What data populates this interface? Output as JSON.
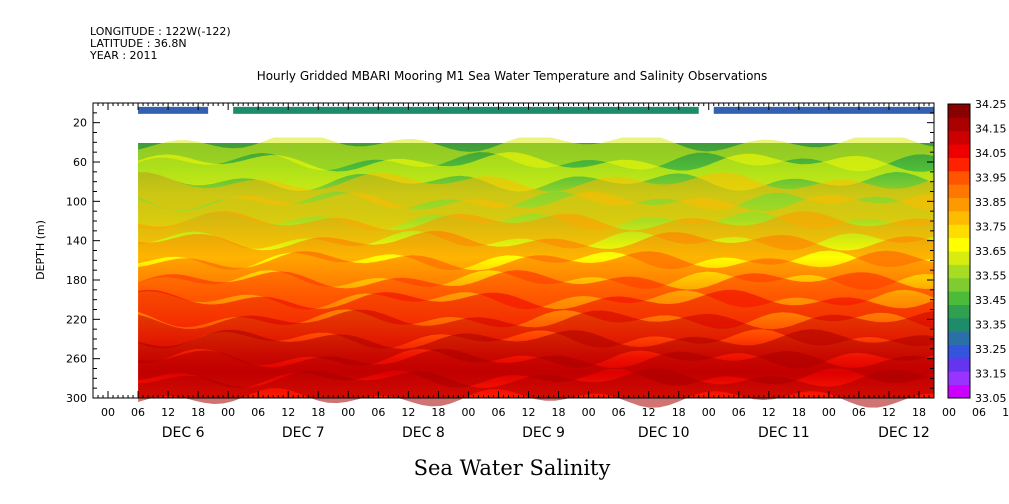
{
  "meta": {
    "longitude": "LONGITUDE : 122W(-122)",
    "latitude": "LATITUDE : 36.8N",
    "year": "YEAR : 2011"
  },
  "title": "Hourly Gridded MBARI Mooring M1 Sea Water Temperature and Salinity Observations",
  "variable_label": "Sea Water Salinity",
  "chart_data": {
    "type": "heatmap",
    "title": "Hourly Gridded MBARI Mooring M1 Sea Water Temperature and Salinity Observations",
    "xlabel": "",
    "ylabel": "DEPTH (m)",
    "x_range": [
      "2011-12-05 21:00",
      "2011-12-12 21:00"
    ],
    "x_tick_hours": [
      "00",
      "06",
      "12",
      "18",
      "00",
      "06",
      "12",
      "18",
      "00",
      "06",
      "12",
      "18",
      "00",
      "06",
      "12",
      "18",
      "00",
      "06",
      "12",
      "18",
      "00",
      "06",
      "12",
      "18",
      "00",
      "06",
      "12",
      "18",
      "00",
      "06",
      "12",
      "18"
    ],
    "x_day_labels": [
      "DEC  6",
      "DEC  7",
      "DEC  8",
      "DEC  9",
      "DEC 10",
      "DEC 11",
      "DEC 12"
    ],
    "ylim": [
      300,
      0
    ],
    "y_ticks": [
      20,
      60,
      100,
      140,
      180,
      220,
      260,
      300
    ],
    "colorbar": {
      "levels": [
        33.05,
        33.15,
        33.25,
        33.35,
        33.45,
        33.55,
        33.65,
        33.75,
        33.85,
        33.95,
        34.05,
        34.15,
        34.25
      ],
      "colors": [
        "#cc00ff",
        "#9933ff",
        "#6633ee",
        "#3355dd",
        "#2a6fa8",
        "#1e8c6a",
        "#2fa050",
        "#4dbb3a",
        "#7fcc30",
        "#a8dc22",
        "#d8ec10",
        "#ffff00",
        "#ffdd00",
        "#ffbb00",
        "#ff9900",
        "#ff7700",
        "#ff5500",
        "#ff2200",
        "#ee0000",
        "#cc0000",
        "#aa0000",
        "#880000"
      ]
    },
    "surface_band": {
      "depth_m": 10,
      "value_approx": 33.4,
      "gaps_hours_from_start": [
        [
          23,
          28
        ],
        [
          121,
          124
        ]
      ]
    },
    "gap_rows_depth_m": [
      12,
      35
    ],
    "missing_before_hour": 9,
    "profile_mean": [
      {
        "depth": 40,
        "value": 33.55
      },
      {
        "depth": 60,
        "value": 33.65
      },
      {
        "depth": 80,
        "value": 33.75
      },
      {
        "depth": 100,
        "value": 33.78
      },
      {
        "depth": 120,
        "value": 33.82
      },
      {
        "depth": 140,
        "value": 33.88
      },
      {
        "depth": 160,
        "value": 33.95
      },
      {
        "depth": 180,
        "value": 34.0
      },
      {
        "depth": 200,
        "value": 34.06
      },
      {
        "depth": 220,
        "value": 34.12
      },
      {
        "depth": 240,
        "value": 34.16
      },
      {
        "depth": 260,
        "value": 34.22
      },
      {
        "depth": 280,
        "value": 34.17
      },
      {
        "depth": 300,
        "value": 34.16
      }
    ]
  }
}
